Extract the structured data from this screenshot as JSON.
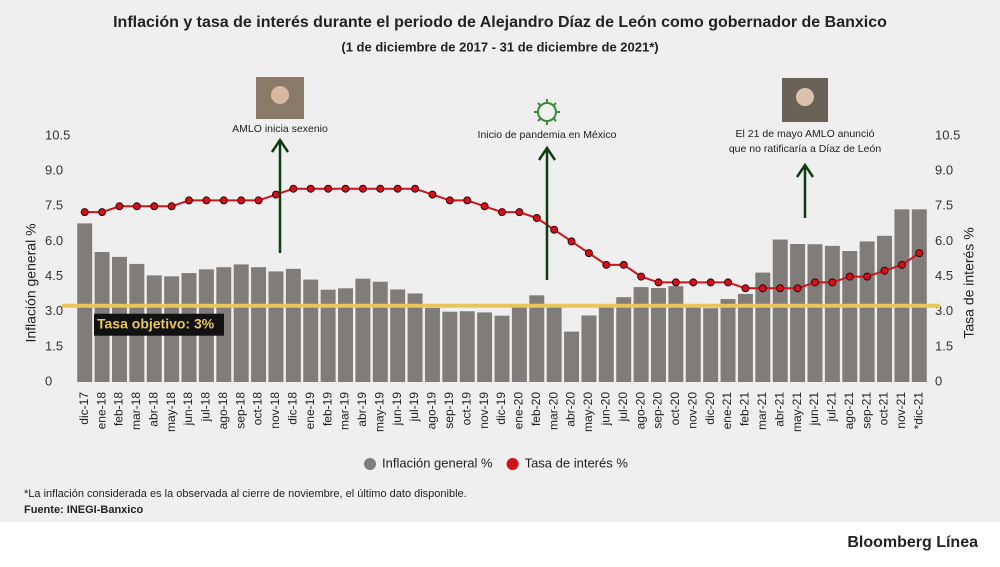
{
  "chart_data": {
    "type": "combo",
    "title": "Inflación y tasa de interés durante el periodo de Alejandro Díaz de León como gobernador de Banxico",
    "subtitle": "(1 de diciembre de 2017 - 31 de diciembre de 2021*)",
    "y_label": "Inflación general %",
    "y2_label": "Tasa de interés %",
    "categories": [
      "dic-17",
      "ene-18",
      "feb-18",
      "mar-18",
      "abr-18",
      "may-18",
      "jun-18",
      "jul-18",
      "ago-18",
      "sep-18",
      "oct-18",
      "nov-18",
      "dic-18",
      "ene-19",
      "feb-19",
      "mar-19",
      "abr-19",
      "may-19",
      "jun-19",
      "jul-19",
      "ago-19",
      "sep-19",
      "oct-19",
      "nov-19",
      "dic-19",
      "ene-20",
      "feb-20",
      "mar-20",
      "abr-20",
      "may-20",
      "jun-20",
      "jul-20",
      "ago-20",
      "sep-20",
      "oct-20",
      "nov-20",
      "dic-20",
      "ene-21",
      "feb-21",
      "mar-21",
      "abr-21",
      "may-21",
      "jun-21",
      "jul-21",
      "ago-21",
      "sep-21",
      "oct-21",
      "nov-21",
      "*dic-21"
    ],
    "series": [
      {
        "name": "Inflación general %",
        "type": "bar",
        "color": "#807c79",
        "values": [
          6.77,
          5.55,
          5.34,
          5.04,
          4.55,
          4.51,
          4.65,
          4.81,
          4.9,
          5.02,
          4.9,
          4.72,
          4.83,
          4.37,
          3.94,
          4.0,
          4.41,
          4.28,
          3.95,
          3.78,
          3.16,
          3.0,
          3.02,
          2.97,
          2.83,
          3.24,
          3.7,
          3.25,
          2.15,
          2.84,
          3.33,
          3.62,
          4.05,
          4.01,
          4.09,
          3.33,
          3.15,
          3.54,
          3.76,
          4.67,
          6.08,
          5.89,
          5.88,
          5.81,
          5.59,
          6.0,
          6.24,
          7.37,
          7.37
        ]
      },
      {
        "name": "Tasa de interés %",
        "type": "line",
        "axis": "y2",
        "color": "#d0121b",
        "values": [
          7.25,
          7.25,
          7.5,
          7.5,
          7.5,
          7.5,
          7.75,
          7.75,
          7.75,
          7.75,
          7.75,
          8.0,
          8.25,
          8.25,
          8.25,
          8.25,
          8.25,
          8.25,
          8.25,
          8.25,
          8.0,
          7.75,
          7.75,
          7.5,
          7.25,
          7.25,
          7.0,
          6.5,
          6.0,
          5.5,
          5.0,
          5.0,
          4.5,
          4.25,
          4.25,
          4.25,
          4.25,
          4.25,
          4.0,
          4.0,
          4.0,
          4.0,
          4.25,
          4.25,
          4.5,
          4.5,
          4.75,
          5.0,
          5.5
        ]
      }
    ],
    "ylim": [
      0,
      10.5
    ],
    "yticks": [
      0,
      1.5,
      {
        "value": 3,
        "label": "3.0"
      },
      4.5,
      {
        "value": 6,
        "label": "6.0"
      },
      7.5,
      {
        "value": 9,
        "label": "9.0"
      },
      10.5
    ],
    "y2lim": [
      0,
      10.5
    ],
    "y2ticks": [
      0,
      1.5,
      {
        "value": 3,
        "label": "3.0"
      },
      4.5,
      {
        "value": 6,
        "label": "6.0"
      },
      7.5,
      {
        "value": 9,
        "label": "9.0"
      },
      10.5
    ],
    "target_line": {
      "value": 3,
      "label": "Tasa objetivo: 3%",
      "color": "#e8c65a"
    },
    "annotations": [
      {
        "text": [
          "AMLO inicia sexenio"
        ]
      },
      {
        "text": [
          "Inicio de pandemia en México"
        ]
      },
      {
        "text": [
          "El 21 de mayo AMLO anunció",
          "que no ratificaría a Díaz de León"
        ]
      }
    ],
    "footnote": "*La inflación considerada es la observada al cierre de noviembre, el último dato disponible.",
    "source": "Fuente: INEGI-Banxico",
    "brand": "Bloomberg Línea"
  }
}
